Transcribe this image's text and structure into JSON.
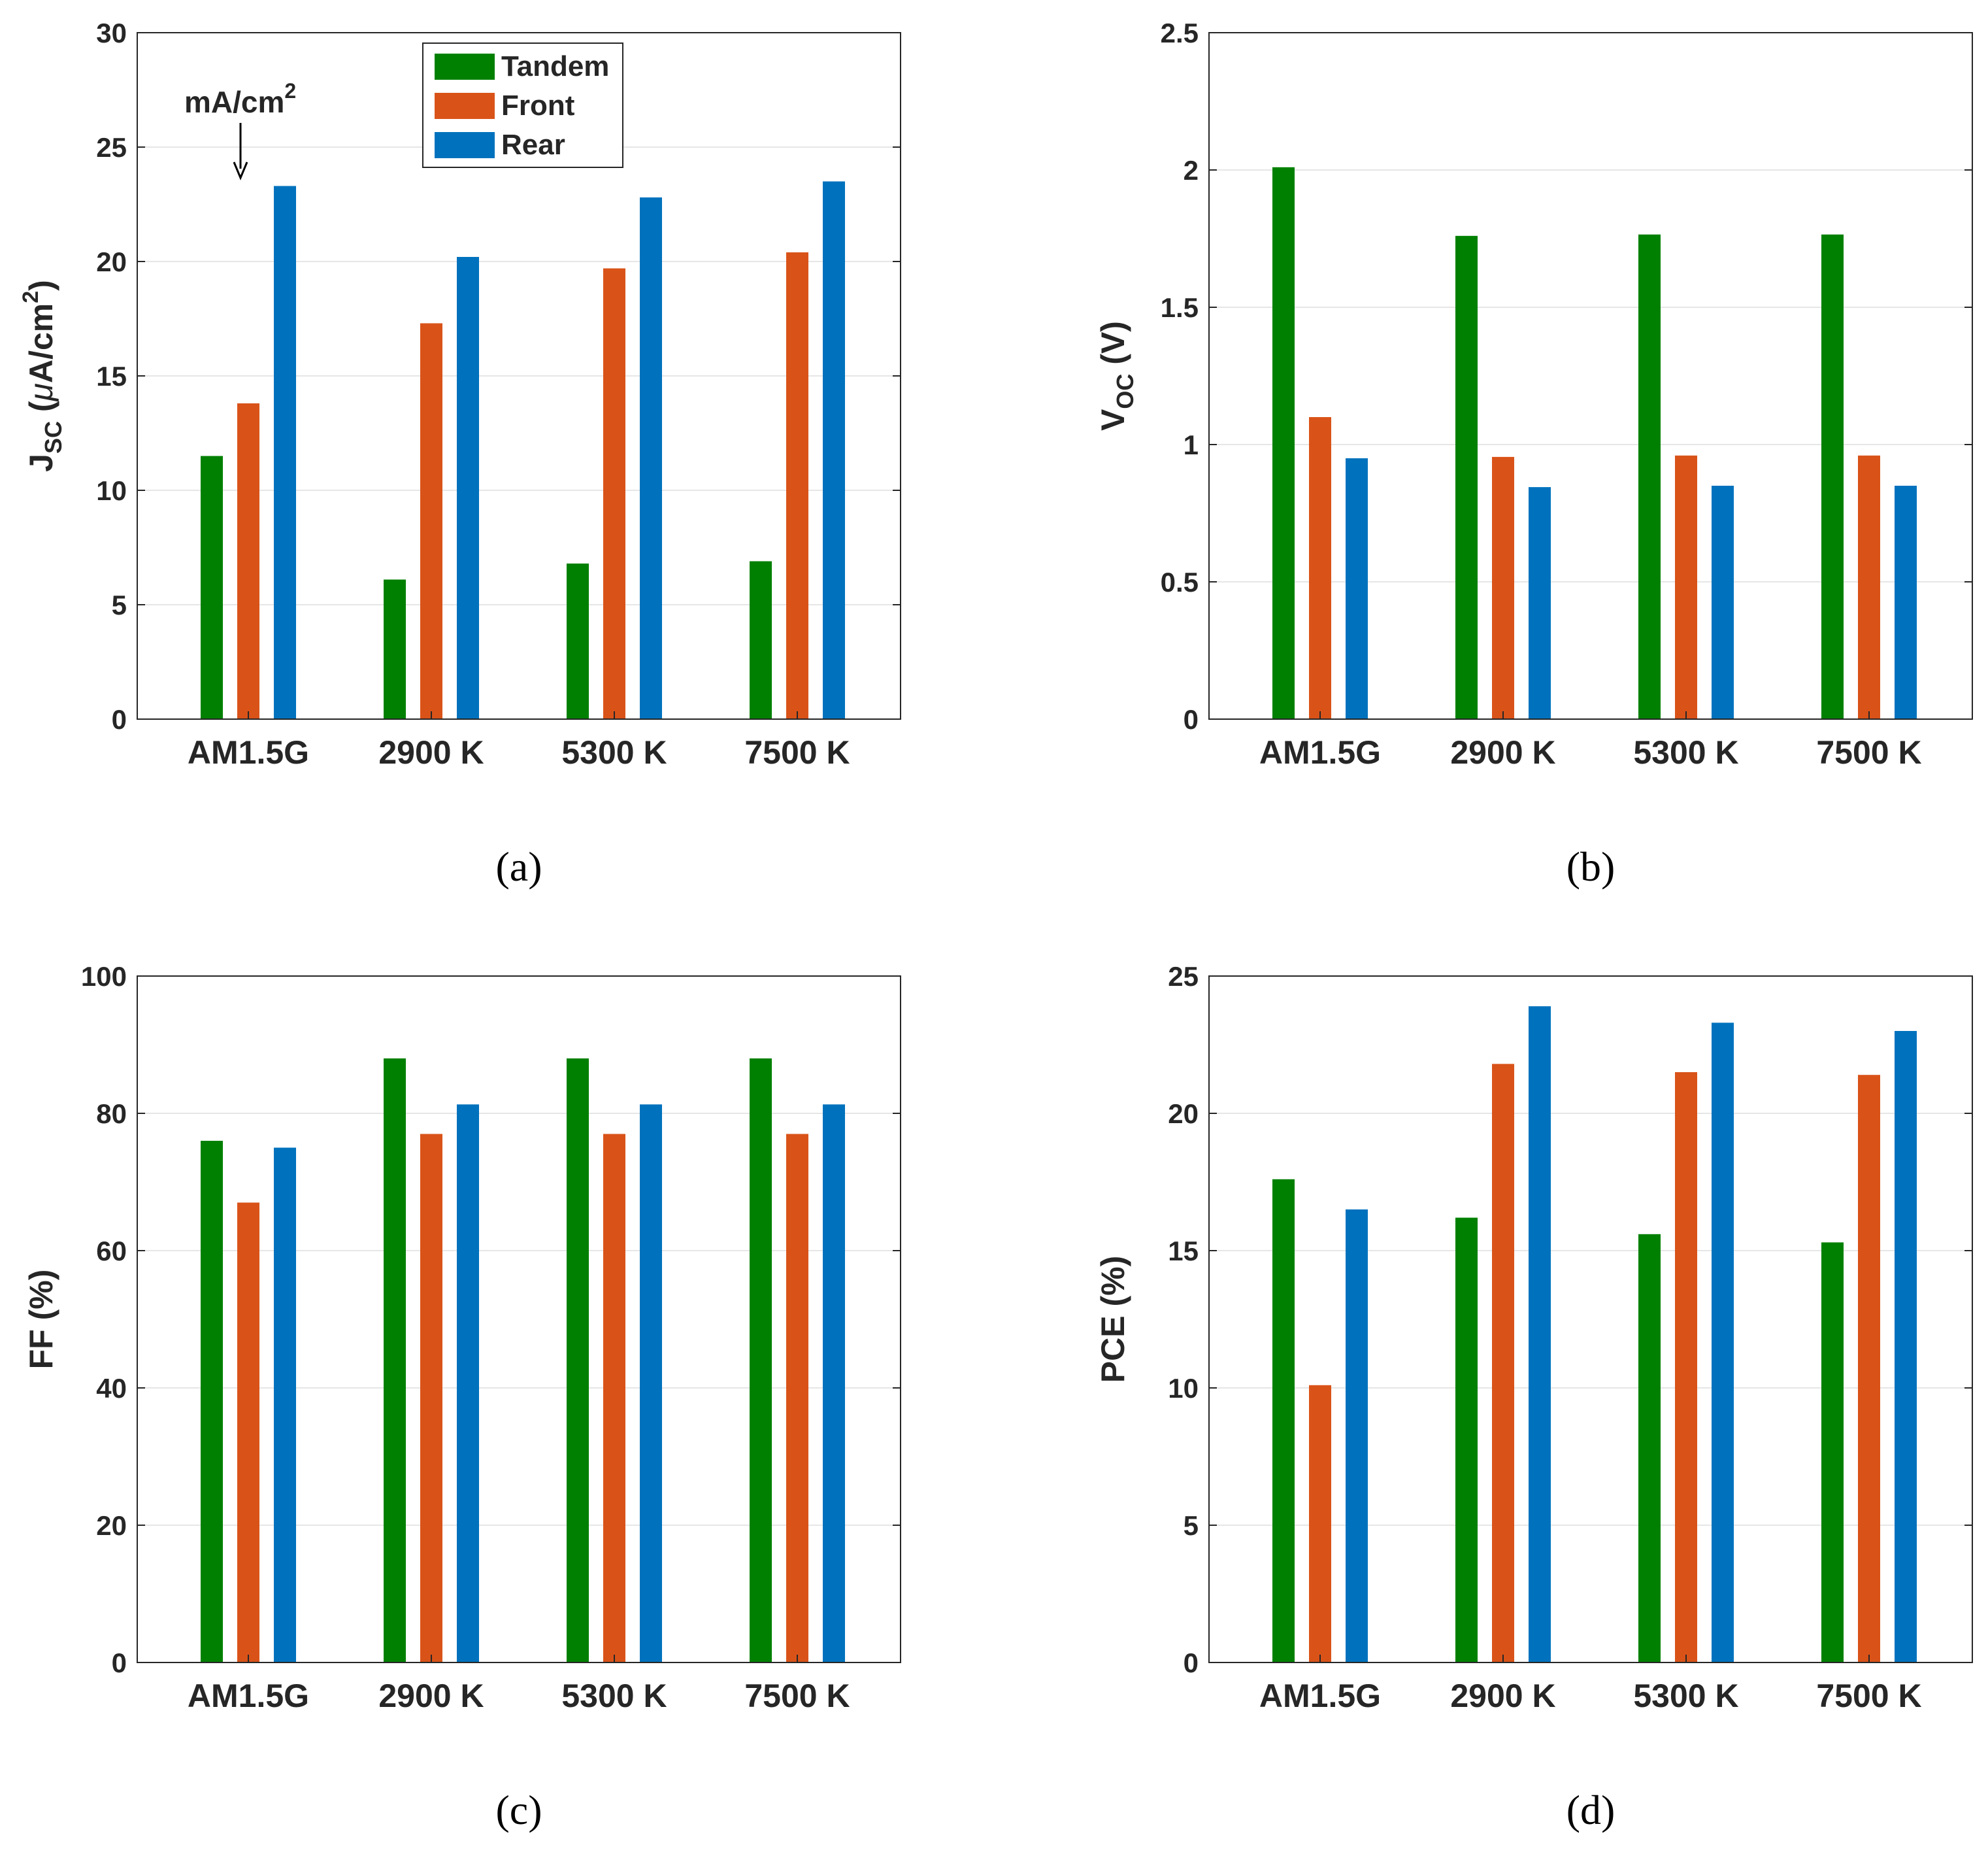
{
  "series_colors": {
    "Tandem": "#008000",
    "Front": "#D95319",
    "Rear": "#0072BD"
  },
  "chart_data": [
    {
      "type": "bar",
      "panel_label": "(a)",
      "categories": [
        "AM1.5G",
        "2900 K",
        "5300 K",
        "7500 K"
      ],
      "series": [
        {
          "name": "Tandem",
          "values": [
            11.5,
            6.1,
            6.8,
            6.9
          ]
        },
        {
          "name": "Front",
          "values": [
            13.8,
            17.3,
            19.7,
            20.4
          ]
        },
        {
          "name": "Rear",
          "values": [
            23.3,
            20.2,
            22.8,
            23.5
          ]
        }
      ],
      "ylabel": {
        "main": "J",
        "sub": "SC",
        "rest": " (",
        "mu": "μ",
        "unit": "A/cm",
        "sup": "2",
        "close": ")"
      },
      "ylim": [
        0,
        30
      ],
      "yticks": [
        0,
        5,
        10,
        15,
        20,
        25,
        30
      ],
      "ytick_labels": [
        "0",
        "5",
        "10",
        "15",
        "20",
        "25",
        "30"
      ],
      "grid": true,
      "legend": {
        "placement": "top-center",
        "entries": [
          "Tandem",
          "Front",
          "Rear"
        ]
      },
      "annotation": {
        "text": "mA/cm",
        "sup": "2",
        "target_category": "AM1.5G",
        "target_series": "Tandem"
      }
    },
    {
      "type": "bar",
      "panel_label": "(b)",
      "categories": [
        "AM1.5G",
        "2900 K",
        "5300 K",
        "7500 K"
      ],
      "series": [
        {
          "name": "Tandem",
          "values": [
            2.01,
            1.76,
            1.765,
            1.765
          ]
        },
        {
          "name": "Front",
          "values": [
            1.1,
            0.955,
            0.96,
            0.96
          ]
        },
        {
          "name": "Rear",
          "values": [
            0.95,
            0.845,
            0.85,
            0.85
          ]
        }
      ],
      "ylabel": {
        "main": "V",
        "sub": "OC",
        "rest": " (V)"
      },
      "ylim": [
        0,
        2.5
      ],
      "yticks": [
        0,
        0.5,
        1,
        1.5,
        2,
        2.5
      ],
      "ytick_labels": [
        "0",
        "0.5",
        "1",
        "1.5",
        "2",
        "2.5"
      ],
      "grid": true
    },
    {
      "type": "bar",
      "panel_label": "(c)",
      "categories": [
        "AM1.5G",
        "2900 K",
        "5300 K",
        "7500 K"
      ],
      "series": [
        {
          "name": "Tandem",
          "values": [
            76,
            88,
            88,
            88
          ]
        },
        {
          "name": "Front",
          "values": [
            67,
            77,
            77,
            77
          ]
        },
        {
          "name": "Rear",
          "values": [
            75,
            81.3,
            81.3,
            81.3
          ]
        }
      ],
      "ylabel": {
        "main": "FF (%)"
      },
      "ylim": [
        0,
        100
      ],
      "yticks": [
        0,
        20,
        40,
        60,
        80,
        100
      ],
      "ytick_labels": [
        "0",
        "20",
        "40",
        "60",
        "80",
        "100"
      ],
      "grid": true
    },
    {
      "type": "bar",
      "panel_label": "(d)",
      "categories": [
        "AM1.5G",
        "2900 K",
        "5300 K",
        "7500 K"
      ],
      "series": [
        {
          "name": "Tandem",
          "values": [
            17.6,
            16.2,
            15.6,
            15.3
          ]
        },
        {
          "name": "Front",
          "values": [
            10.1,
            21.8,
            21.5,
            21.4
          ]
        },
        {
          "name": "Rear",
          "values": [
            16.5,
            23.9,
            23.3,
            23.0
          ]
        }
      ],
      "ylabel": {
        "main": "PCE (%)"
      },
      "ylim": [
        0,
        25
      ],
      "yticks": [
        0,
        5,
        10,
        15,
        20,
        25
      ],
      "ytick_labels": [
        "0",
        "5",
        "10",
        "15",
        "20",
        "25"
      ],
      "grid": true
    }
  ]
}
